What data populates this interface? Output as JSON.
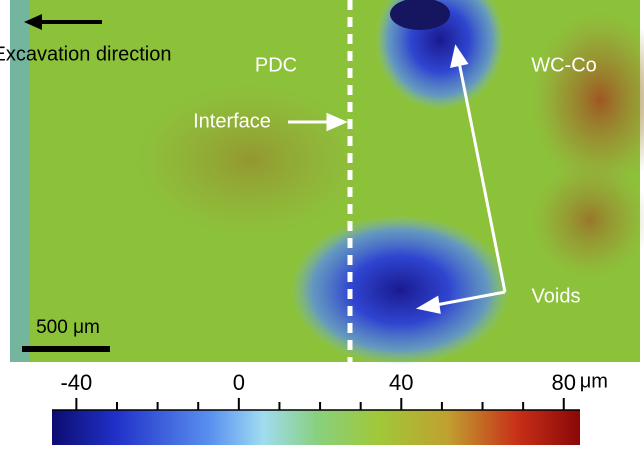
{
  "labels": {
    "excavation": "Excavation direction",
    "pdc": "PDC",
    "interface": "Interface",
    "wcco": "WC-Co",
    "voids": "Voids",
    "scale_bar": "500 μm"
  },
  "colorbar": {
    "lim": [
      -46,
      84
    ],
    "ticks": [
      -40,
      0,
      40,
      80
    ],
    "minor_ticks": [
      -30,
      -20,
      -10,
      10,
      20,
      30,
      50,
      60,
      70
    ],
    "unit": "μm"
  }
}
